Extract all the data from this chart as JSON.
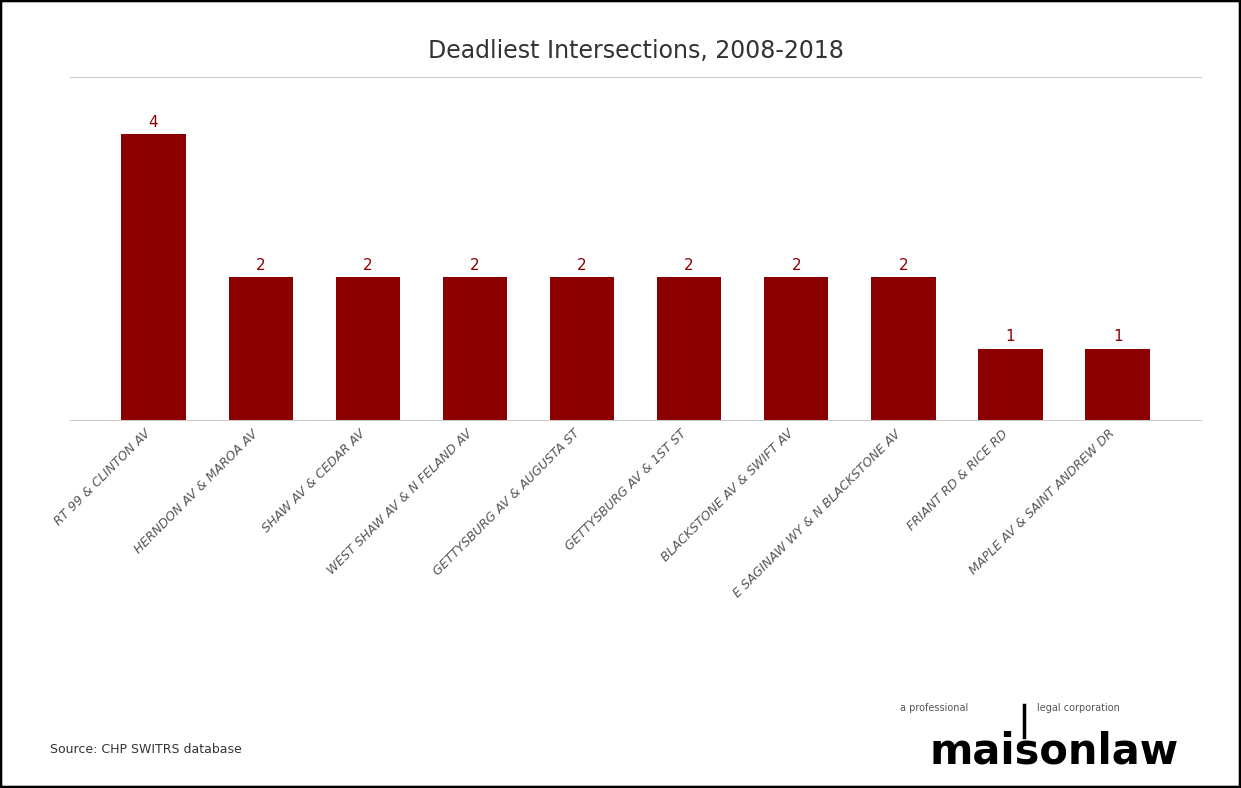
{
  "title": "Deadliest Intersections, 2008-2018",
  "categories": [
    "RT 99 & CLINTON AV",
    "HERNDON AV & MAROA AV",
    "SHAW AV & CEDAR AV",
    "WEST SHAW AV & N FELAND AV",
    "GETTYSBURG AV & AUGUSTA ST",
    "GETTYSBURG AV & 1ST ST",
    "BLACKSTONE AV & SWIFT AV",
    "E SAGINAW WY & N BLACKSTONE AV",
    "FRIANT RD & RICE RD",
    "MAPLE AV & SAINT ANDREW DR"
  ],
  "values": [
    4,
    2,
    2,
    2,
    2,
    2,
    2,
    2,
    1,
    1
  ],
  "bar_color": "#8B0000",
  "value_color": "#8B0000",
  "title_fontsize": 17,
  "label_fontsize": 9,
  "value_fontsize": 11,
  "source_text": "Source: CHP SWITRS database",
  "background_color": "#FFFFFF",
  "ylim": [
    0,
    4.8
  ],
  "grid_color": "#cccccc",
  "border_color": "#000000",
  "tick_label_color": "#555555",
  "logo_main": "maisonlaw",
  "logo_small1": "a professional",
  "logo_small2": "legal corporation",
  "logo_fontsize": 30,
  "logo_small_fontsize": 7
}
